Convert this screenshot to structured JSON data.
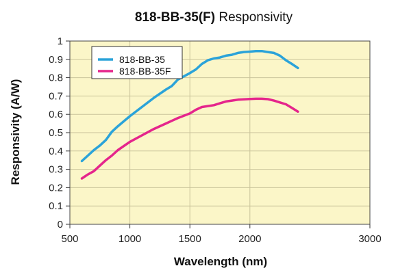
{
  "chart_data": {
    "type": "line",
    "title_bold": "818-BB-35(F)",
    "title_rest": "Responsivity",
    "xlabel": "Wavelength (nm)",
    "ylabel": "Responsivity (A/W)",
    "xlim": [
      500,
      3000
    ],
    "ylim": [
      0,
      1
    ],
    "xticks": [
      "500",
      "1000",
      "1500",
      "2000",
      "3000"
    ],
    "xtick_values": [
      500,
      1000,
      1500,
      2000,
      3000
    ],
    "yticks": [
      "0",
      "0.1",
      "0.2",
      "0.3",
      "0.4",
      "0.5",
      "0.6",
      "0.7",
      "0.8",
      "0.9",
      "1"
    ],
    "ytick_values": [
      0,
      0.1,
      0.2,
      0.3,
      0.4,
      0.5,
      0.6,
      0.7,
      0.8,
      0.9,
      1
    ],
    "grid": true,
    "legend_position": "top-left",
    "background_color": "#fbf6c8",
    "series": [
      {
        "name": "818-BB-35",
        "color": "#2ba3d9",
        "x": [
          600,
          650,
          700,
          750,
          800,
          850,
          900,
          1000,
          1100,
          1200,
          1300,
          1350,
          1400,
          1500,
          1550,
          1600,
          1650,
          1700,
          1750,
          1800,
          1850,
          1900,
          1950,
          2000,
          2050,
          2100,
          2150,
          2200,
          2250,
          2300,
          2350,
          2400
        ],
        "y": [
          0.345,
          0.375,
          0.405,
          0.43,
          0.46,
          0.505,
          0.535,
          0.59,
          0.64,
          0.69,
          0.735,
          0.755,
          0.79,
          0.825,
          0.845,
          0.875,
          0.895,
          0.905,
          0.91,
          0.92,
          0.925,
          0.935,
          0.94,
          0.942,
          0.945,
          0.945,
          0.94,
          0.935,
          0.92,
          0.895,
          0.875,
          0.853
        ]
      },
      {
        "name": "818-BB-35F",
        "color": "#e5258c",
        "x": [
          600,
          650,
          700,
          750,
          800,
          850,
          900,
          1000,
          1100,
          1200,
          1300,
          1400,
          1500,
          1550,
          1600,
          1650,
          1700,
          1750,
          1800,
          1850,
          1900,
          1950,
          2000,
          2050,
          2100,
          2150,
          2200,
          2250,
          2300,
          2350,
          2400
        ],
        "y": [
          0.25,
          0.272,
          0.29,
          0.32,
          0.35,
          0.375,
          0.405,
          0.45,
          0.485,
          0.52,
          0.55,
          0.58,
          0.605,
          0.625,
          0.64,
          0.645,
          0.65,
          0.66,
          0.67,
          0.675,
          0.68,
          0.682,
          0.684,
          0.685,
          0.685,
          0.683,
          0.675,
          0.665,
          0.655,
          0.635,
          0.615
        ]
      }
    ]
  }
}
